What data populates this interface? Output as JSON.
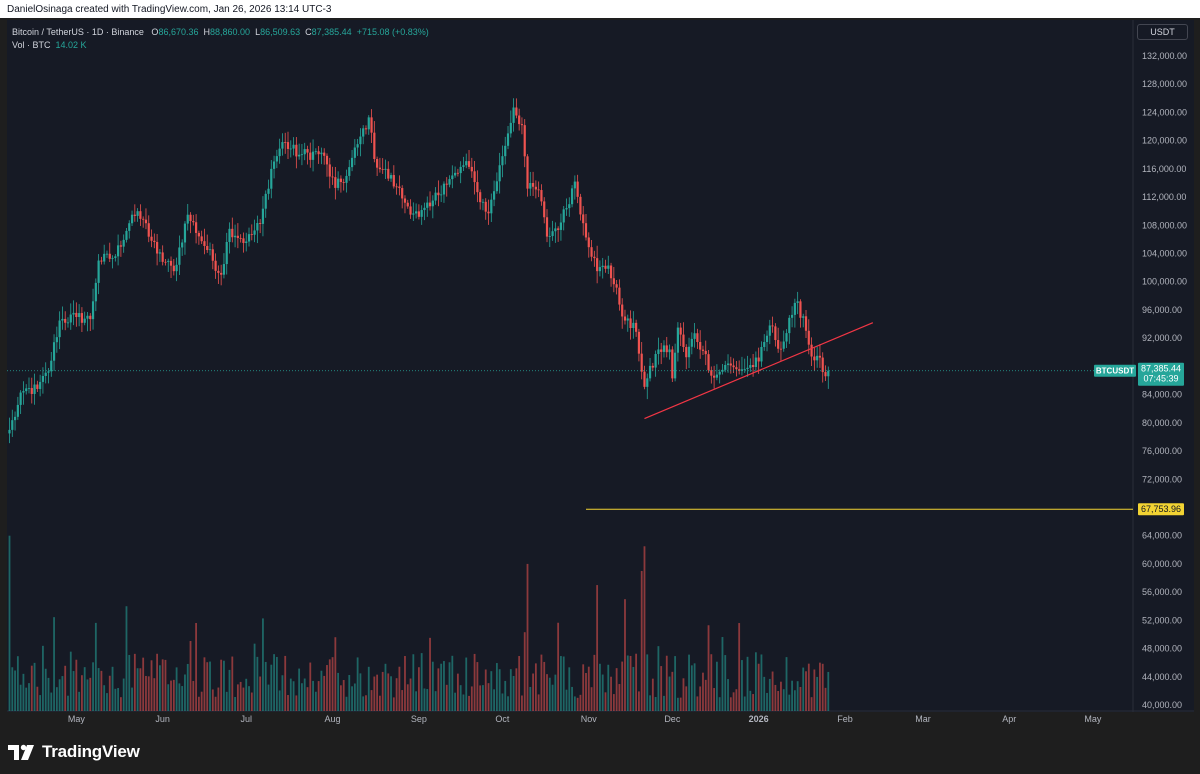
{
  "header": {
    "creator_text": "DanielOsinaga created with TradingView.com, Jan 26, 2026 13:14 UTC-3"
  },
  "legend": {
    "symbol": "Bitcoin / TetherUS · 1D · Binance",
    "o_label": "O",
    "o_value": "86,670.36",
    "h_label": "H",
    "h_value": "88,860.00",
    "l_label": "L",
    "l_value": "86,509.63",
    "c_label": "C",
    "c_value": "87,385.44",
    "change": "+715.08 (+0.83%)",
    "vol_label": "Vol · BTC",
    "vol_value": "14.02 K"
  },
  "currency_button": "USDT",
  "price_tag": {
    "symbol": "BTCUSDT",
    "price": "87,385.44",
    "countdown": "07:45:39"
  },
  "hline_tag": "67,753.96",
  "footer": {
    "brand": "TradingView"
  },
  "colors": {
    "up": "#26a69a",
    "down": "#ef5350",
    "trendline": "#f23645",
    "hline": "#f2d333",
    "background": "#161a25"
  },
  "chart_data": {
    "type": "candlestick",
    "symbol": "BTCUSDT",
    "interval": "1D",
    "y_ticks": [
      132000,
      128000,
      124000,
      120000,
      116000,
      112000,
      108000,
      104000,
      100000,
      96000,
      92000,
      88000,
      84000,
      80000,
      76000,
      72000,
      68000,
      64000,
      60000,
      56000,
      52000,
      48000,
      44000,
      40000
    ],
    "y_tick_labels": [
      "132,000.00",
      "128,000.00",
      "124,000.00",
      "120,000.00",
      "116,000.00",
      "112,000.00",
      "108,000.00",
      "104,000.00",
      "100,000.00",
      "96,000.00",
      "92,000.00",
      "88,000.00",
      "84,000.00",
      "80,000.00",
      "76,000.00",
      "72,000.00",
      "68,000.00",
      "64,000.00",
      "60,000.00",
      "56,000.00",
      "52,000.00",
      "48,000.00",
      "44,000.00",
      "40,000.00"
    ],
    "ylim": [
      39000,
      135000
    ],
    "start_date": "2025-04-07",
    "x_ticks": [
      {
        "label": "May",
        "date": "2025-05-01"
      },
      {
        "label": "Jun",
        "date": "2025-06-01"
      },
      {
        "label": "Jul",
        "date": "2025-07-01"
      },
      {
        "label": "Aug",
        "date": "2025-08-01"
      },
      {
        "label": "Sep",
        "date": "2025-09-01"
      },
      {
        "label": "Oct",
        "date": "2025-10-01"
      },
      {
        "label": "Nov",
        "date": "2025-11-01"
      },
      {
        "label": "Dec",
        "date": "2025-12-01"
      },
      {
        "label": "2026",
        "date": "2026-01-01"
      },
      {
        "label": "Feb",
        "date": "2026-02-01"
      },
      {
        "label": "Mar",
        "date": "2026-03-01"
      },
      {
        "label": "Apr",
        "date": "2026-04-01"
      },
      {
        "label": "May",
        "date": "2026-05-01"
      }
    ],
    "close_anchors": [
      [
        "2025-04-07",
        79000
      ],
      [
        "2025-04-12",
        84500
      ],
      [
        "2025-04-17",
        84800
      ],
      [
        "2025-04-21",
        87300
      ],
      [
        "2025-04-25",
        94500
      ],
      [
        "2025-05-01",
        95000
      ],
      [
        "2025-05-06",
        94700
      ],
      [
        "2025-05-09",
        103000
      ],
      [
        "2025-05-15",
        103600
      ],
      [
        "2025-05-21",
        109500
      ],
      [
        "2025-05-25",
        108800
      ],
      [
        "2025-05-30",
        104000
      ],
      [
        "2025-06-05",
        101500
      ],
      [
        "2025-06-10",
        109500
      ],
      [
        "2025-06-17",
        104500
      ],
      [
        "2025-06-22",
        101000
      ],
      [
        "2025-06-25",
        107500
      ],
      [
        "2025-07-01",
        105700
      ],
      [
        "2025-07-06",
        108200
      ],
      [
        "2025-07-10",
        116000
      ],
      [
        "2025-07-14",
        119800
      ],
      [
        "2025-07-20",
        118000
      ],
      [
        "2025-07-28",
        118300
      ],
      [
        "2025-08-02",
        113300
      ],
      [
        "2025-08-06",
        115000
      ],
      [
        "2025-08-10",
        119500
      ],
      [
        "2025-08-14",
        123300
      ],
      [
        "2025-08-16",
        117400
      ],
      [
        "2025-08-24",
        113500
      ],
      [
        "2025-08-27",
        111200
      ],
      [
        "2025-09-01",
        109200
      ],
      [
        "2025-09-05",
        110700
      ],
      [
        "2025-09-10",
        113900
      ],
      [
        "2025-09-15",
        115400
      ],
      [
        "2025-09-18",
        117100
      ],
      [
        "2025-09-22",
        112700
      ],
      [
        "2025-09-26",
        109700
      ],
      [
        "2025-10-01",
        117800
      ],
      [
        "2025-10-05",
        124700
      ],
      [
        "2025-10-08",
        122200
      ],
      [
        "2025-10-10",
        113200
      ],
      [
        "2025-10-14",
        113000
      ],
      [
        "2025-10-17",
        106400
      ],
      [
        "2025-10-22",
        108400
      ],
      [
        "2025-10-27",
        114200
      ],
      [
        "2025-10-30",
        108300
      ],
      [
        "2025-11-04",
        101500
      ],
      [
        "2025-11-08",
        102300
      ],
      [
        "2025-11-14",
        94500
      ],
      [
        "2025-11-18",
        92900
      ],
      [
        "2025-11-21",
        85100
      ],
      [
        "2025-11-26",
        90400
      ],
      [
        "2025-11-30",
        90400
      ],
      [
        "2025-12-01",
        86300
      ],
      [
        "2025-12-03",
        93500
      ],
      [
        "2025-12-06",
        89300
      ],
      [
        "2025-12-09",
        92700
      ],
      [
        "2025-12-12",
        90200
      ],
      [
        "2025-12-16",
        86400
      ],
      [
        "2025-12-20",
        88200
      ],
      [
        "2025-12-24",
        87600
      ],
      [
        "2025-12-28",
        87800
      ],
      [
        "2026-01-01",
        88700
      ],
      [
        "2026-01-05",
        93800
      ],
      [
        "2026-01-09",
        90500
      ],
      [
        "2026-01-13",
        95300
      ],
      [
        "2026-01-14",
        97000
      ],
      [
        "2026-01-17",
        95100
      ],
      [
        "2026-01-20",
        89400
      ],
      [
        "2026-01-22",
        89500
      ],
      [
        "2026-01-25",
        86600
      ],
      [
        "2026-01-26",
        87385.44
      ]
    ],
    "volume_axis_max": 62000,
    "trendline": {
      "from": {
        "date": "2025-11-21",
        "price": 80600
      },
      "to": {
        "date": "2026-02-11",
        "price": 94200
      }
    },
    "horizontal_line": {
      "price": 67753.96,
      "from_date": "2025-10-31"
    },
    "last_price": 87385.44
  }
}
